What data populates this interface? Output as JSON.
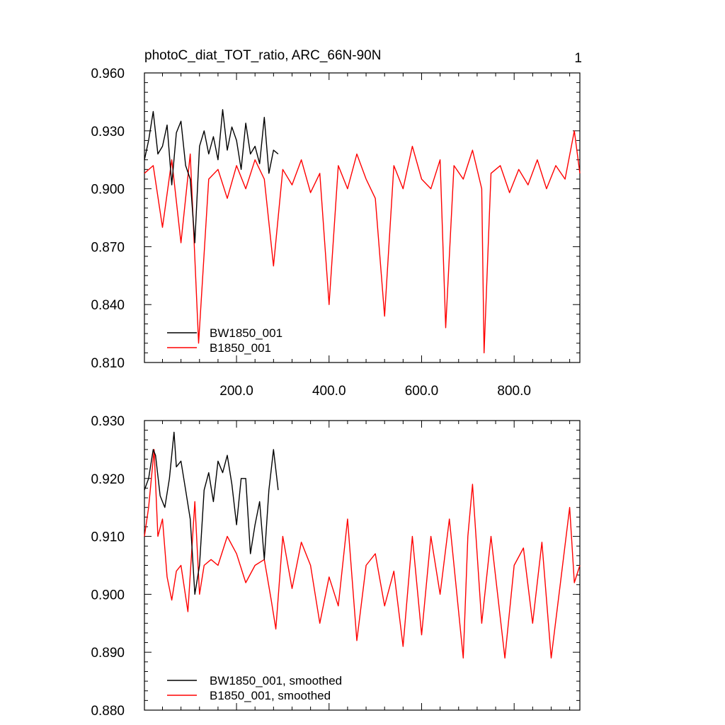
{
  "figure": {
    "title": "photoC_diat_TOT_ratio, ARC_66N-90N",
    "panel_number": "1"
  },
  "chart_data": [
    {
      "type": "line",
      "title": "photoC_diat_TOT_ratio, ARC_66N-90N",
      "xlabel": "",
      "ylabel": "",
      "xlim": [
        1,
        942
      ],
      "ylim": [
        0.81,
        0.96
      ],
      "x_ticks": [
        200,
        400,
        600,
        800
      ],
      "x_tick_labels": [
        "200.0",
        "400.0",
        "600.0",
        "800.0"
      ],
      "y_ticks": [
        0.81,
        0.84,
        0.87,
        0.9,
        0.93,
        0.96
      ],
      "y_tick_labels": [
        "0.810",
        "0.840",
        "0.870",
        "0.900",
        "0.930",
        "0.960"
      ],
      "grid": false,
      "legend_position": "bottom-left",
      "series": [
        {
          "name": "BW1850_001",
          "color": "#000000",
          "x": [
            1,
            10,
            20,
            30,
            40,
            50,
            60,
            70,
            80,
            90,
            100,
            110,
            120,
            130,
            140,
            150,
            160,
            170,
            180,
            190,
            200,
            210,
            220,
            230,
            240,
            250,
            260,
            270,
            280,
            290
          ],
          "y": [
            0.915,
            0.925,
            0.94,
            0.918,
            0.922,
            0.933,
            0.902,
            0.929,
            0.935,
            0.912,
            0.905,
            0.872,
            0.922,
            0.93,
            0.918,
            0.927,
            0.915,
            0.941,
            0.92,
            0.932,
            0.925,
            0.91,
            0.934,
            0.918,
            0.922,
            0.913,
            0.937,
            0.908,
            0.92,
            0.918
          ]
        },
        {
          "name": "B1850_001",
          "color": "#ff0000",
          "x": [
            1,
            20,
            40,
            60,
            80,
            100,
            118,
            140,
            160,
            180,
            200,
            220,
            240,
            260,
            280,
            300,
            320,
            340,
            360,
            380,
            400,
            420,
            440,
            460,
            480,
            500,
            520,
            540,
            560,
            580,
            600,
            620,
            640,
            652,
            670,
            690,
            710,
            730,
            735,
            750,
            770,
            790,
            810,
            830,
            850,
            870,
            890,
            910,
            930,
            942
          ],
          "y": [
            0.908,
            0.912,
            0.88,
            0.915,
            0.872,
            0.918,
            0.82,
            0.905,
            0.91,
            0.895,
            0.912,
            0.9,
            0.915,
            0.905,
            0.86,
            0.91,
            0.902,
            0.915,
            0.898,
            0.908,
            0.84,
            0.912,
            0.9,
            0.918,
            0.905,
            0.895,
            0.834,
            0.912,
            0.9,
            0.922,
            0.905,
            0.9,
            0.915,
            0.828,
            0.912,
            0.905,
            0.92,
            0.9,
            0.815,
            0.908,
            0.912,
            0.898,
            0.91,
            0.902,
            0.915,
            0.9,
            0.912,
            0.905,
            0.93,
            0.908
          ]
        }
      ]
    },
    {
      "type": "line",
      "title": "",
      "xlabel": "",
      "ylabel": "",
      "xlim": [
        1,
        942
      ],
      "ylim": [
        0.88,
        0.93
      ],
      "x_ticks": [
        200,
        400,
        600,
        800
      ],
      "x_tick_labels": [],
      "y_ticks": [
        0.88,
        0.89,
        0.9,
        0.91,
        0.92,
        0.93
      ],
      "y_tick_labels": [
        "0.880",
        "0.890",
        "0.900",
        "0.910",
        "0.920",
        "0.930"
      ],
      "grid": false,
      "legend_position": "bottom-left",
      "series": [
        {
          "name": "BW1850_001, smoothed",
          "color": "#000000",
          "x": [
            1,
            10,
            20,
            25,
            35,
            45,
            55,
            65,
            70,
            80,
            90,
            100,
            110,
            120,
            130,
            140,
            150,
            160,
            170,
            180,
            190,
            200,
            210,
            220,
            230,
            240,
            250,
            260,
            270,
            280,
            290
          ],
          "y": [
            0.918,
            0.92,
            0.925,
            0.924,
            0.917,
            0.915,
            0.92,
            0.928,
            0.922,
            0.923,
            0.918,
            0.913,
            0.9,
            0.905,
            0.918,
            0.921,
            0.916,
            0.923,
            0.921,
            0.924,
            0.919,
            0.912,
            0.92,
            0.92,
            0.907,
            0.912,
            0.916,
            0.906,
            0.918,
            0.925,
            0.918
          ]
        },
        {
          "name": "B1850_001, smoothed",
          "color": "#ff0000",
          "x": [
            1,
            10,
            22,
            30,
            40,
            50,
            60,
            70,
            80,
            95,
            110,
            120,
            130,
            145,
            160,
            180,
            200,
            220,
            240,
            260,
            275,
            285,
            300,
            320,
            340,
            360,
            380,
            400,
            420,
            440,
            460,
            480,
            500,
            520,
            540,
            560,
            580,
            600,
            620,
            640,
            660,
            690,
            700,
            710,
            730,
            750,
            780,
            800,
            820,
            840,
            860,
            880,
            900,
            920,
            930,
            942
          ],
          "y": [
            0.91,
            0.915,
            0.925,
            0.91,
            0.913,
            0.903,
            0.899,
            0.904,
            0.905,
            0.897,
            0.916,
            0.9,
            0.905,
            0.906,
            0.905,
            0.91,
            0.907,
            0.902,
            0.905,
            0.906,
            0.899,
            0.894,
            0.91,
            0.901,
            0.909,
            0.905,
            0.895,
            0.903,
            0.898,
            0.913,
            0.892,
            0.905,
            0.907,
            0.898,
            0.904,
            0.891,
            0.91,
            0.893,
            0.91,
            0.9,
            0.913,
            0.889,
            0.91,
            0.919,
            0.895,
            0.91,
            0.889,
            0.905,
            0.908,
            0.895,
            0.909,
            0.889,
            0.902,
            0.915,
            0.902,
            0.905
          ]
        }
      ]
    }
  ]
}
